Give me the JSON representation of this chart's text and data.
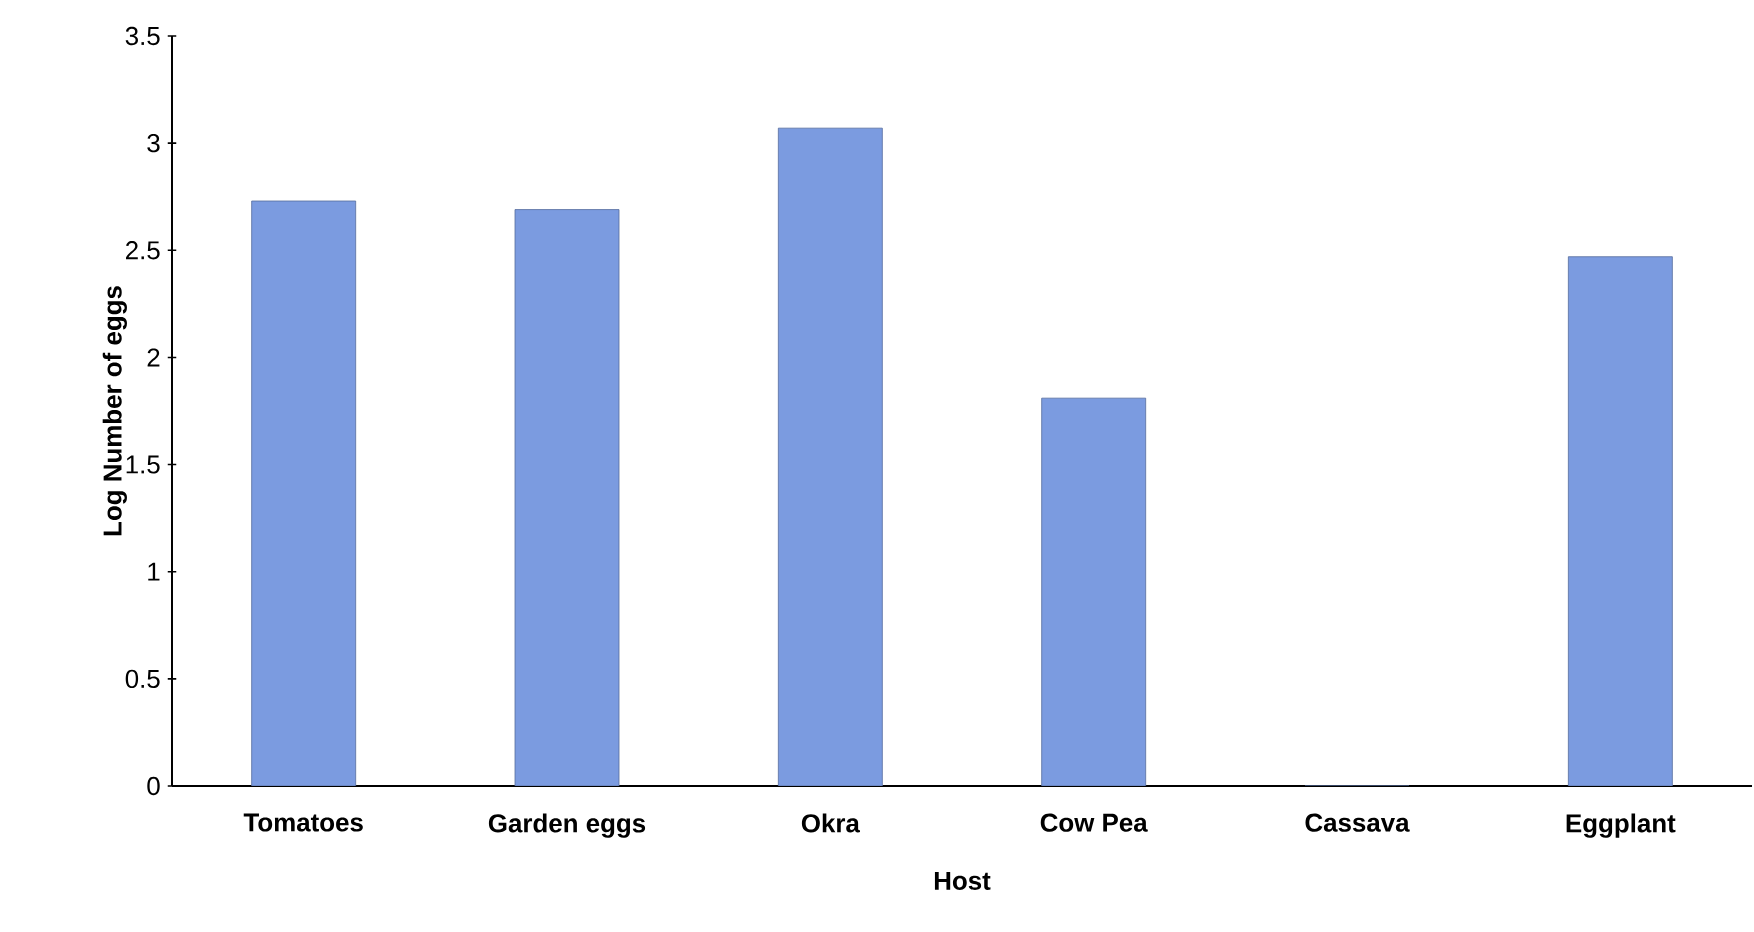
{
  "chart_data": {
    "type": "bar",
    "xlabel": "Host",
    "ylabel": "Log Number of eggs",
    "categories": [
      "Tomatoes",
      "Garden eggs",
      "Okra",
      "Cow Pea",
      "Cassava",
      "Eggplant"
    ],
    "values": [
      2.73,
      2.69,
      3.07,
      1.81,
      0,
      2.47
    ],
    "color": "#7b9be0",
    "ylim": [
      0,
      3.5
    ],
    "yticks": [
      0,
      0.5,
      1,
      1.5,
      2,
      2.5,
      3,
      3.5
    ],
    "grid": false
  }
}
